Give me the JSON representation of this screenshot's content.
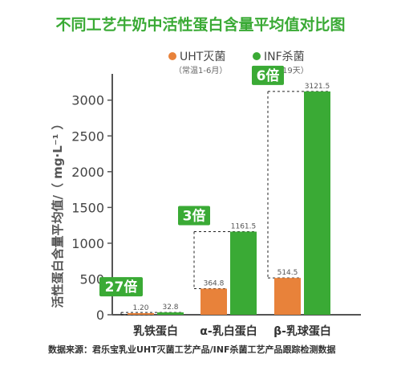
{
  "chart_data": {
    "type": "bar",
    "title": "不同工艺牛奶中活性蛋白含量平均值对比图",
    "ylabel": "活性蛋白含量平均值/（ mg·L⁻¹ ）",
    "xlabel": "",
    "ylim": [
      0,
      3300
    ],
    "yticks": [
      0,
      500,
      1000,
      1500,
      2000,
      2500,
      3000
    ],
    "categories": [
      "乳铁蛋白",
      "α-乳白蛋白",
      "β-乳球蛋白"
    ],
    "series": [
      {
        "name": "UHT灭菌",
        "note": "（常温1-6月）",
        "color": "#e8823a",
        "values": [
          1.2,
          364.8,
          514.5
        ],
        "labels": [
          "1.20",
          "364.8",
          "514.5"
        ]
      },
      {
        "name": "INF杀菌",
        "note": "（低温19天）",
        "color": "#3aaa35",
        "values": [
          32.8,
          1161.5,
          3121.5
        ],
        "labels": [
          "32.8",
          "1161.5",
          "3121.5"
        ]
      }
    ],
    "ratios": [
      "27倍",
      "3倍",
      "6倍"
    ],
    "grid": false,
    "legend_position": "top-right"
  },
  "colors": {
    "title": "#3aaa35",
    "uht": "#e8823a",
    "inf": "#3aaa35",
    "axis": "#555555"
  },
  "source": "数据来源：君乐宝乳业UHT灭菌工艺产品/INF杀菌工艺产品跟踪检测数据"
}
